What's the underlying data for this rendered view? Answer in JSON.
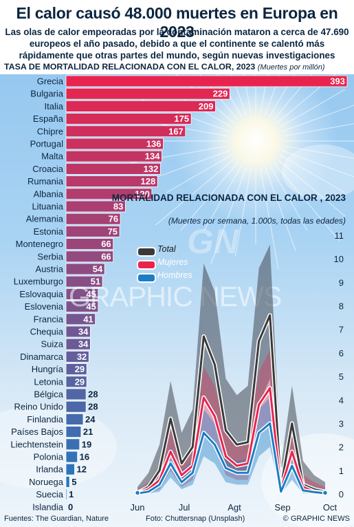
{
  "title": "El calor causó 48.000 muertes en Europa en 2023",
  "subtitle": "Las olas de calor empeoradas por la contaminación mataron a cerca de 47.690 europeos el año pasado, debido a que el continente se calentó más rápidamente que otras partes del mundo, según nuevas investigaciones",
  "chart_data": [
    {
      "type": "bar",
      "title": "TASA DE MORTALIDAD RELACIONADA CON EL CALOR, 2023",
      "unit": "(Muertes por millón)",
      "categories": [
        "Grecia",
        "Bulgaria",
        "Italia",
        "España",
        "Chipre",
        "Portugal",
        "Malta",
        "Croacia",
        "Rumania",
        "Albania",
        "Lituania",
        "Alemania",
        "Estonia",
        "Montenegro",
        "Serbia",
        "Austria",
        "Luxemburgo",
        "Eslovaquia",
        "Eslovenia",
        "Francia",
        "Chequia",
        "Suiza",
        "Dinamarca",
        "Hungría",
        "Letonia",
        "Bélgica",
        "Reino Unido",
        "Finlandia",
        "Países Bajos",
        "Liechtenstein",
        "Polonia",
        "Irlanda",
        "Noruega",
        "Suecia",
        "Islandia"
      ],
      "values": [
        393,
        229,
        209,
        175,
        167,
        136,
        134,
        132,
        128,
        120,
        83,
        76,
        75,
        66,
        66,
        54,
        51,
        45,
        45,
        41,
        34,
        34,
        32,
        29,
        29,
        28,
        28,
        24,
        21,
        19,
        16,
        12,
        5,
        1,
        0
      ],
      "colors": {
        "high": "#e8244e",
        "low": "#1c7dc4"
      }
    },
    {
      "type": "line",
      "title": "MORTALIDAD RELACIONADA CON EL CALOR , 2023",
      "subtitle": "(Muertes por semana, 1.000s, todas las edades)",
      "x_labels": [
        "Jun",
        "Jul",
        "Agt",
        "Sep",
        "Oct"
      ],
      "y_ticks": [
        0,
        1,
        2,
        3,
        4,
        5,
        6,
        7,
        8,
        9,
        10,
        11
      ],
      "ylim": [
        0,
        11
      ],
      "series": [
        {
          "name": "Total",
          "color": "#3a3a3a",
          "values": [
            0.05,
            0.3,
            1.0,
            3.2,
            1.3,
            2.0,
            6.7,
            5.5,
            2.7,
            2.1,
            2.2,
            6.5,
            7.6,
            0.3,
            3.0,
            0.4,
            0.2,
            0.1
          ],
          "upper": [
            0.3,
            0.9,
            2.1,
            4.8,
            2.6,
            3.6,
            9.8,
            8.6,
            4.9,
            4.2,
            4.6,
            9.6,
            10.6,
            1.2,
            4.6,
            1.4,
            0.8,
            0.5
          ],
          "lower": [
            0.0,
            0.05,
            0.3,
            1.8,
            0.5,
            0.9,
            4.0,
            3.2,
            1.2,
            0.9,
            1.0,
            3.8,
            4.9,
            0.05,
            1.6,
            0.1,
            0.05,
            0.0
          ]
        },
        {
          "name": "Mujeres",
          "color": "#e8244e",
          "values": [
            0.03,
            0.2,
            0.6,
            1.8,
            0.8,
            1.2,
            4.1,
            3.3,
            1.6,
            1.2,
            1.3,
            3.8,
            4.5,
            0.2,
            1.8,
            0.3,
            0.1,
            0.05
          ],
          "upper": [
            0.2,
            0.5,
            1.2,
            2.8,
            1.5,
            2.0,
            5.4,
            4.6,
            2.6,
            2.1,
            2.3,
            5.2,
            6.1,
            0.6,
            2.7,
            0.8,
            0.5,
            0.3
          ],
          "lower": [
            0.0,
            0.05,
            0.2,
            1.0,
            0.3,
            0.6,
            2.6,
            2.0,
            0.8,
            0.6,
            0.6,
            2.4,
            3.0,
            0.05,
            1.0,
            0.05,
            0.02,
            0.0
          ]
        },
        {
          "name": "Hombres",
          "color": "#1c7dc4",
          "values": [
            0.02,
            0.1,
            0.4,
            1.3,
            0.5,
            0.9,
            2.6,
            2.1,
            1.1,
            0.9,
            0.9,
            2.6,
            3.0,
            0.1,
            1.2,
            0.15,
            0.08,
            0.03
          ],
          "upper": [
            0.1,
            0.3,
            0.8,
            2.0,
            1.0,
            1.4,
            3.6,
            3.0,
            1.7,
            1.4,
            1.5,
            3.6,
            4.1,
            0.4,
            1.9,
            0.5,
            0.3,
            0.2
          ],
          "lower": [
            0.0,
            0.02,
            0.1,
            0.7,
            0.2,
            0.4,
            1.6,
            1.3,
            0.5,
            0.4,
            0.4,
            1.6,
            2.0,
            0.02,
            0.6,
            0.03,
            0.01,
            0.0
          ]
        }
      ]
    }
  ],
  "watermark": "GRAPHIC NEWS",
  "logo": "GN",
  "footer": {
    "sources": "Fuentes: The Guardian, Nature",
    "photo": "Foto: Chuttersnap (Unsplash)",
    "credit": "© GRAPHIC NEWS"
  }
}
